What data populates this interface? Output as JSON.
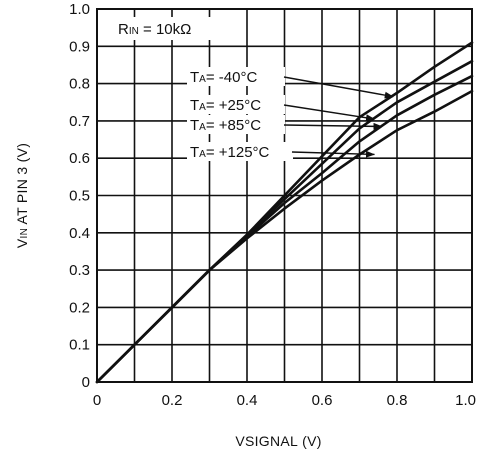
{
  "chart_data": {
    "type": "line",
    "xlabel_main": "VSIGNAL",
    "xlabel_unit": "(V)",
    "ylabel": "VIN AT PIN 3 (V)",
    "ylabel_main": "V",
    "ylabel_sub": "IN",
    "ylabel_rest": " AT PIN 3 (V)",
    "xlim": [
      0,
      1.0
    ],
    "ylim": [
      0,
      1.0
    ],
    "x_ticks": [
      0,
      0.2,
      0.4,
      0.6,
      0.8,
      1.0
    ],
    "y_ticks": [
      0,
      0.1,
      0.2,
      0.3,
      0.4,
      0.5,
      0.6,
      0.7,
      0.8,
      0.9,
      1.0
    ],
    "x_tick_labels": [
      "0",
      "0.2",
      "0.4",
      "0.6",
      "0.8",
      "1.0"
    ],
    "y_tick_labels": [
      "0",
      "0.1",
      "0.2",
      "0.3",
      "0.4",
      "0.5",
      "0.6",
      "0.7",
      "0.8",
      "0.9",
      "1.0"
    ],
    "x_minor_gridlines": [
      0.1,
      0.3,
      0.5,
      0.7,
      0.9
    ],
    "grid": true,
    "condition_label": "RIN = 10kΩ",
    "condition_main": "R",
    "condition_sub": "IN",
    "condition_rest": " = 10kΩ",
    "series": [
      {
        "name": "TA= -40°C",
        "label_main": "T",
        "label_sub": "A",
        "label_rest": "= -40°C",
        "x": [
          0,
          0.1,
          0.2,
          0.3,
          0.4,
          0.5,
          0.6,
          0.7,
          0.8,
          0.9,
          1.0
        ],
        "values": [
          0,
          0.1,
          0.2,
          0.3,
          0.395,
          0.5,
          0.605,
          0.71,
          0.775,
          0.845,
          0.91
        ],
        "arrow_target": [
          0.79,
          0.765
        ]
      },
      {
        "name": "TA= +25°C",
        "label_main": "T",
        "label_sub": "A",
        "label_rest": "= +25°C",
        "x": [
          0,
          0.1,
          0.2,
          0.3,
          0.4,
          0.5,
          0.6,
          0.7,
          0.8,
          0.9,
          1.0
        ],
        "values": [
          0,
          0.1,
          0.2,
          0.3,
          0.395,
          0.49,
          0.585,
          0.68,
          0.75,
          0.805,
          0.86
        ],
        "arrow_target": [
          0.74,
          0.705
        ]
      },
      {
        "name": "TA= +85°C",
        "label_main": "T",
        "label_sub": "A",
        "label_rest": "= +85°C",
        "x": [
          0,
          0.1,
          0.2,
          0.3,
          0.4,
          0.5,
          0.6,
          0.7,
          0.8,
          0.9,
          1.0
        ],
        "values": [
          0,
          0.1,
          0.2,
          0.3,
          0.39,
          0.48,
          0.56,
          0.645,
          0.715,
          0.77,
          0.82
        ],
        "arrow_target": [
          0.76,
          0.685
        ]
      },
      {
        "name": "TA= +125°C",
        "label_main": "T",
        "label_sub": "A",
        "label_rest": "= +125°C",
        "x": [
          0,
          0.1,
          0.2,
          0.3,
          0.4,
          0.5,
          0.6,
          0.7,
          0.8,
          0.9,
          1.0
        ],
        "values": [
          0,
          0.1,
          0.2,
          0.3,
          0.385,
          0.465,
          0.54,
          0.61,
          0.675,
          0.725,
          0.78
        ],
        "arrow_target": [
          0.74,
          0.61
        ]
      }
    ]
  }
}
